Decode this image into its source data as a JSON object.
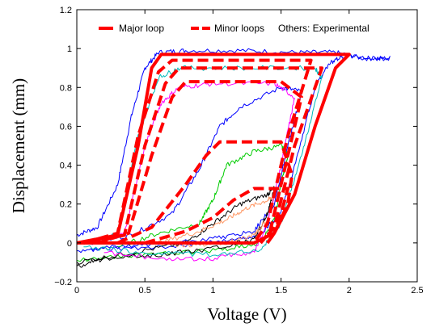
{
  "chart_data": {
    "type": "line",
    "title": "",
    "xlabel": "Voltage (V)",
    "ylabel": "Displacement (mm)",
    "xlim": [
      0,
      2.5
    ],
    "ylim": [
      -0.2,
      1.2
    ],
    "xticks": [
      "0",
      "0.5",
      "1",
      "1.5",
      "2",
      "2.5"
    ],
    "yticks": [
      "−0.2",
      "0",
      "0.2",
      "0.4",
      "0.6",
      "0.8",
      "1",
      "1.2"
    ],
    "grid": false,
    "legend_position": "top",
    "legend": [
      {
        "label": "Major loop",
        "color": "#ff0000",
        "style": "solid"
      },
      {
        "label": "Minor loops",
        "color": "#ff0000",
        "style": "dashed"
      },
      {
        "label": "Others: Experimental",
        "color": "",
        "style": "none"
      }
    ],
    "series": [
      {
        "name": "Major loop",
        "color": "#ff0000",
        "style": "solid",
        "width": 4,
        "x": [
          0,
          0.3,
          0.45,
          0.55,
          0.62,
          2.0,
          1.9,
          1.75,
          1.6,
          1.45,
          1.3,
          0
        ],
        "y": [
          0,
          0.04,
          0.5,
          0.9,
          0.97,
          0.97,
          0.9,
          0.6,
          0.25,
          0.05,
          0,
          0
        ]
      },
      {
        "name": "Minor loops",
        "color": "#ff0000",
        "style": "dashed",
        "width": 4,
        "x": [
          0.05,
          0.3,
          0.45,
          0.6,
          0.7,
          1.72,
          1.55,
          1.4,
          1.3
        ],
        "y": [
          0.0,
          0.05,
          0.55,
          0.88,
          0.94,
          0.94,
          0.55,
          0.1,
          0.0
        ]
      },
      {
        "name": "",
        "color": "#ff0000",
        "style": "dashed",
        "width": 4,
        "x": [
          0.1,
          0.35,
          0.5,
          0.65,
          0.75,
          1.8,
          1.6,
          1.45,
          1.35
        ],
        "y": [
          0.0,
          0.04,
          0.5,
          0.82,
          0.9,
          0.9,
          0.5,
          0.08,
          0.0
        ]
      },
      {
        "name": "",
        "color": "#ff0000",
        "style": "dashed",
        "width": 4,
        "x": [
          0.15,
          0.38,
          0.55,
          0.7,
          0.8,
          1.5,
          1.65,
          1.55,
          1.42,
          1.35
        ],
        "y": [
          0.0,
          0.05,
          0.45,
          0.75,
          0.83,
          0.83,
          0.75,
          0.45,
          0.06,
          0.0
        ]
      },
      {
        "name": "",
        "color": "#ff0000",
        "style": "dashed",
        "width": 4,
        "x": [
          0.3,
          0.55,
          0.8,
          0.95,
          1.05,
          1.5,
          1.58,
          1.55,
          1.45,
          1.4
        ],
        "y": [
          0.0,
          0.08,
          0.3,
          0.45,
          0.52,
          0.52,
          0.35,
          0.2,
          0.05,
          0.0
        ]
      },
      {
        "name": "",
        "color": "#ff0000",
        "style": "dashed",
        "width": 4,
        "x": [
          0.5,
          0.8,
          1.0,
          1.15,
          1.3,
          1.55,
          1.5,
          1.45,
          1.4
        ],
        "y": [
          0.0,
          0.06,
          0.13,
          0.22,
          0.28,
          0.28,
          0.15,
          0.05,
          0.0
        ]
      },
      {
        "name": "",
        "color": "#0000ff",
        "style": "solid",
        "width": 1,
        "noisy": true,
        "x": [
          0,
          0.15,
          0.3,
          0.4,
          0.5,
          0.6,
          0.8,
          1.2,
          1.6,
          1.9,
          2.1,
          2.3,
          2.2,
          1.95,
          1.85,
          1.75,
          1.6,
          1.5,
          1.35,
          1.2,
          0.8,
          0.3,
          0
        ],
        "y": [
          0.04,
          0.08,
          0.3,
          0.65,
          0.9,
          0.98,
          0.99,
          0.99,
          0.98,
          0.98,
          0.95,
          0.95,
          0.95,
          0.96,
          0.92,
          0.8,
          0.4,
          0.15,
          0.05,
          0.02,
          -0.01,
          -0.03,
          -0.04
        ]
      },
      {
        "name": "",
        "color": "#0000ff",
        "style": "solid",
        "width": 1,
        "noisy": true,
        "x": [
          0.1,
          0.4,
          0.7,
          0.9,
          1.05,
          1.2,
          1.5,
          1.65,
          1.55,
          1.45,
          1.3,
          1.0,
          0.5,
          0.1
        ],
        "y": [
          0.0,
          0.04,
          0.15,
          0.38,
          0.6,
          0.7,
          0.8,
          0.78,
          0.5,
          0.2,
          0.06,
          0.02,
          -0.01,
          -0.03
        ]
      },
      {
        "name": "",
        "color": "#00cc00",
        "style": "solid",
        "width": 1,
        "noisy": true,
        "x": [
          0.3,
          0.6,
          0.9,
          1.0,
          1.1,
          1.3,
          1.5,
          1.55,
          1.5,
          1.45,
          1.35,
          1.0,
          0.5,
          0.0
        ],
        "y": [
          -0.02,
          0.05,
          0.1,
          0.22,
          0.4,
          0.47,
          0.5,
          0.45,
          0.3,
          0.12,
          0.0,
          -0.04,
          -0.06,
          -0.09
        ]
      },
      {
        "name": "",
        "color": "#000000",
        "style": "solid",
        "width": 1,
        "noisy": true,
        "x": [
          0.0,
          0.4,
          0.8,
          1.0,
          1.2,
          1.4,
          1.45,
          1.4,
          1.3,
          1.0,
          0.6,
          0.2,
          0.0
        ],
        "y": [
          -0.1,
          -0.05,
          0.0,
          0.1,
          0.2,
          0.25,
          0.28,
          0.15,
          0.02,
          -0.03,
          -0.06,
          -0.08,
          -0.12
        ]
      },
      {
        "name": "",
        "color": "#ff9966",
        "style": "solid",
        "width": 1,
        "noisy": true,
        "x": [
          0.6,
          0.9,
          1.1,
          1.25,
          1.4,
          1.45,
          1.4,
          1.3,
          1.1,
          0.8,
          0.6
        ],
        "y": [
          0.0,
          0.06,
          0.12,
          0.18,
          0.22,
          0.24,
          0.12,
          0.04,
          0.0,
          -0.01,
          0.0
        ]
      },
      {
        "name": "",
        "color": "#ff00ff",
        "style": "solid",
        "width": 1,
        "noisy": true,
        "x": [
          0.1,
          0.35,
          0.5,
          0.62,
          0.75,
          1.0,
          1.45,
          1.6,
          1.5,
          1.4,
          1.3,
          1.0,
          0.6,
          0.2
        ],
        "y": [
          0.0,
          0.05,
          0.5,
          0.72,
          0.8,
          0.82,
          0.82,
          0.75,
          0.4,
          0.1,
          -0.05,
          -0.08,
          -0.08,
          -0.05
        ]
      },
      {
        "name": "",
        "color": "#00bbbb",
        "style": "solid",
        "width": 1,
        "noisy": true,
        "x": [
          0.05,
          0.3,
          0.45,
          0.6,
          0.75,
          1.2,
          1.75,
          1.8,
          1.65,
          1.5,
          1.35,
          1.0,
          0.5,
          0.05
        ],
        "y": [
          0.0,
          0.05,
          0.55,
          0.85,
          0.9,
          0.9,
          0.9,
          0.85,
          0.45,
          0.1,
          -0.04,
          -0.06,
          -0.05,
          -0.02
        ]
      }
    ]
  }
}
